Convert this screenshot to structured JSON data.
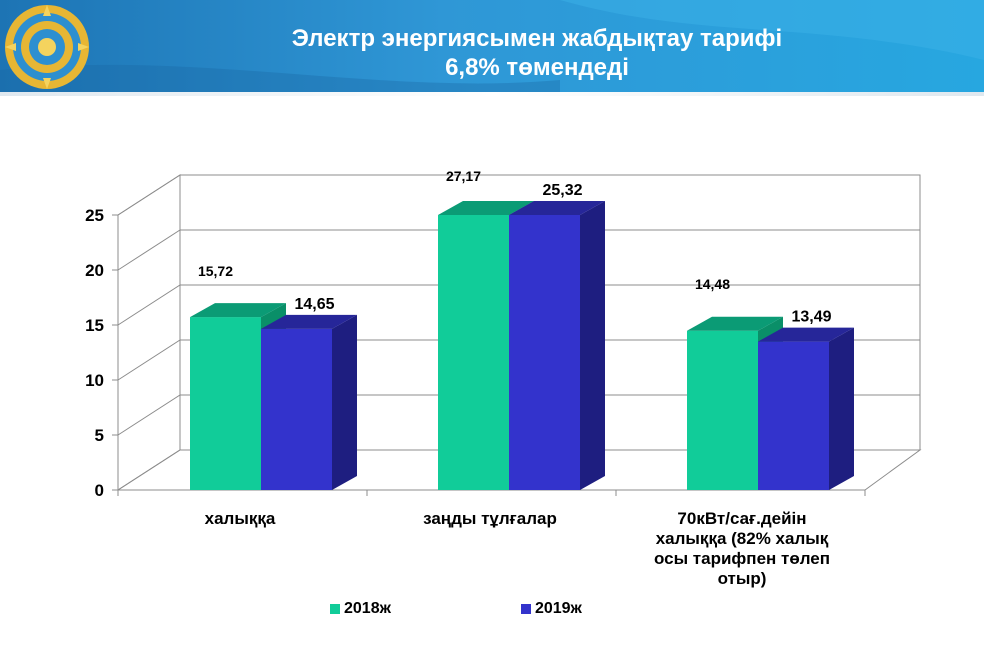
{
  "header": {
    "title_line1": "Электр энергиясымен жабдықтау тарифі",
    "title_line2": "6,8% төмендеді"
  },
  "colors": {
    "series_2018": "#11cc99",
    "series_2019": "#3333cc"
  },
  "chart_data": {
    "type": "bar",
    "categories": [
      "халыққа",
      "заңды тұлғалар",
      "70кВт/сағ.дейін халыққа (82% халық осы тарифпен төлеп отыр)"
    ],
    "category_lines": [
      [
        "халыққа"
      ],
      [
        "заңды тұлғалар"
      ],
      [
        "70кВт/сағ.дейін",
        "халыққа (82% халық",
        "осы тарифпен төлеп",
        "отыр)"
      ]
    ],
    "series": [
      {
        "name": "2018ж",
        "values": [
          15.72,
          27.17,
          14.48
        ],
        "labels": [
          "15,72",
          "27,17",
          "14,48"
        ]
      },
      {
        "name": "2019ж",
        "values": [
          14.65,
          25.32,
          13.49
        ],
        "labels": [
          "14,65",
          "25,32",
          "13,49"
        ]
      }
    ],
    "yticks": [
      "0",
      "5",
      "10",
      "15",
      "20",
      "25"
    ],
    "ylim": [
      0,
      25
    ],
    "grid": true,
    "legend_position": "bottom"
  }
}
